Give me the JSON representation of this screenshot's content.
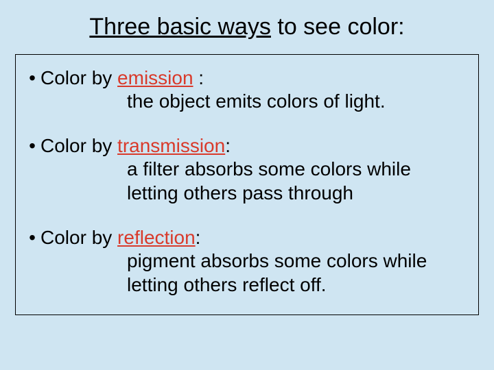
{
  "colors": {
    "background": "#cfe5f2",
    "title_text": "#000000",
    "body_text": "#000000",
    "keyword": "#d93a2b",
    "border": "#000000"
  },
  "typography": {
    "title_fontsize": 34,
    "body_fontsize": 28,
    "font_family": "Arial"
  },
  "title": {
    "underlined": "Three basic ways",
    "rest": " to see color:"
  },
  "bullets": [
    {
      "prefix": "Color by ",
      "keyword": "emission",
      "suffix": " :",
      "description": "the object emits colors of light."
    },
    {
      "prefix": "Color by ",
      "keyword": "transmission",
      "suffix": ":",
      "description": "a filter absorbs some colors while letting others pass through"
    },
    {
      "prefix": "Color by ",
      "keyword": "reflection",
      "suffix": ":",
      "description": "pigment absorbs some colors while letting others reflect off."
    }
  ]
}
